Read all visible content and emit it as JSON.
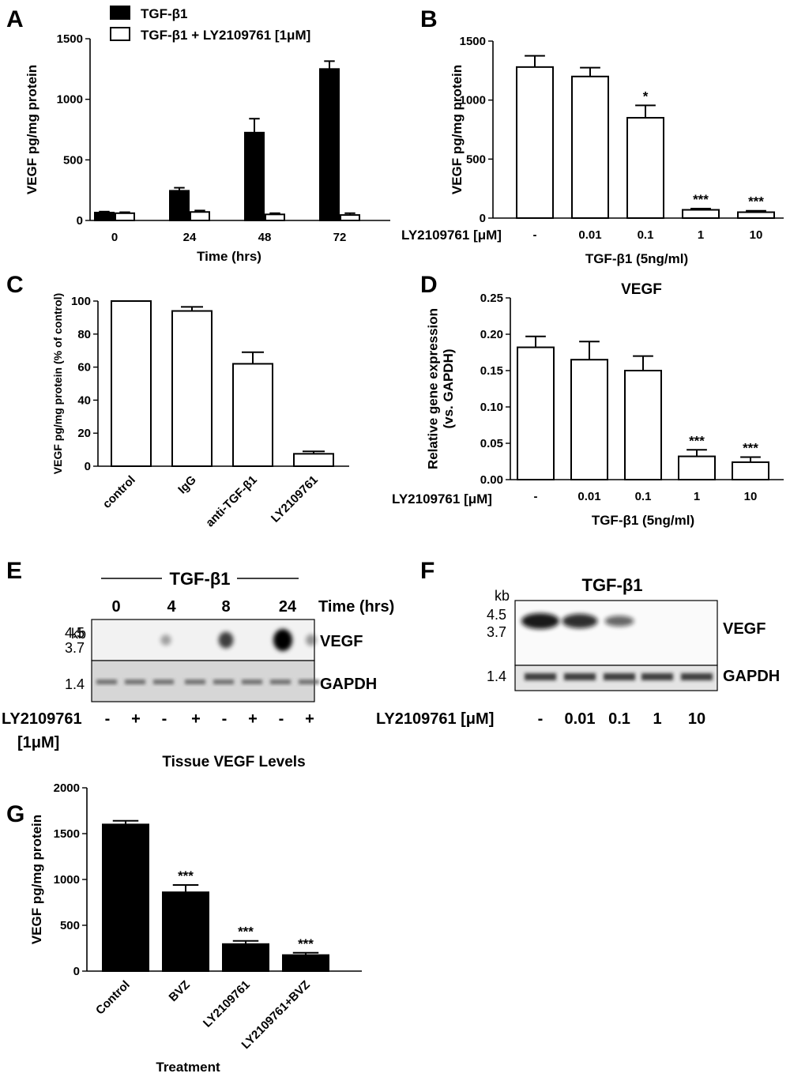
{
  "panels": {
    "A": {
      "letter": "A"
    },
    "B": {
      "letter": "B"
    },
    "C": {
      "letter": "C"
    },
    "D": {
      "letter": "D"
    },
    "E": {
      "letter": "E"
    },
    "F": {
      "letter": "F"
    },
    "G": {
      "letter": "G"
    }
  },
  "chart_data": [
    {
      "id": "A",
      "type": "bar",
      "title": "",
      "xlabel": "Time (hrs)",
      "ylabel": "VEGF pg/mg protein",
      "categories": [
        "0",
        "24",
        "48",
        "72"
      ],
      "ylim": [
        0,
        1500
      ],
      "yticks": [
        "0",
        "500",
        "1000",
        "1500"
      ],
      "legend": [
        "TGF-β1",
        "TGF-β1 + LY2109761 [1μM]"
      ],
      "legend_position": "top-left",
      "series": [
        {
          "name": "TGF-β1",
          "fill": "#000000",
          "values": [
            65,
            245,
            725,
            1250
          ],
          "errors": [
            8,
            25,
            115,
            65
          ]
        },
        {
          "name": "TGF-β1 + LY2109761 [1μM]",
          "fill": "#ffffff",
          "values": [
            60,
            70,
            50,
            45
          ],
          "errors": [
            8,
            12,
            10,
            15
          ]
        }
      ]
    },
    {
      "id": "B",
      "type": "bar",
      "title": "",
      "xlabel": "TGF-β1 (5ng/ml)",
      "row_label": "LY2109761 [μM]",
      "ylabel": "VEGF pg/mg protein",
      "categories": [
        "-",
        "0.01",
        "0.1",
        "1",
        "10"
      ],
      "ylim": [
        0,
        1500
      ],
      "yticks": [
        "0",
        "500",
        "1000",
        "1500"
      ],
      "series": [
        {
          "fill": "#ffffff",
          "values": [
            1280,
            1200,
            850,
            70,
            50
          ],
          "errors": [
            95,
            75,
            105,
            10,
            12
          ]
        }
      ],
      "annotations": [
        "",
        "",
        "*",
        "***",
        "***"
      ]
    },
    {
      "id": "C",
      "type": "bar",
      "title": "",
      "xlabel": "",
      "ylabel": "VEGF pg/mg protein (% of control)",
      "categories": [
        "control",
        "IgG",
        "anti-TGF-β1",
        "LY2109761"
      ],
      "ylim": [
        0,
        100
      ],
      "yticks": [
        "0",
        "20",
        "40",
        "60",
        "80",
        "100"
      ],
      "series": [
        {
          "fill": "#ffffff",
          "values": [
            100,
            94,
            62,
            7.5
          ],
          "errors": [
            0,
            2.5,
            7,
            1.5
          ]
        }
      ]
    },
    {
      "id": "D",
      "type": "bar",
      "title": "VEGF",
      "xlabel": "TGF-β1 (5ng/ml)",
      "row_label": "LY2109761 [μM]",
      "ylabel": "Relative gene expression (vs. GAPDH)",
      "categories": [
        "-",
        "0.01",
        "0.1",
        "1",
        "10"
      ],
      "ylim": [
        0,
        0.25
      ],
      "yticks": [
        "0.00",
        "0.05",
        "0.10",
        "0.15",
        "0.20",
        "0.25"
      ],
      "series": [
        {
          "fill": "#ffffff",
          "values": [
            0.182,
            0.165,
            0.15,
            0.032,
            0.024
          ],
          "errors": [
            0.015,
            0.025,
            0.02,
            0.009,
            0.007
          ]
        }
      ],
      "annotations": [
        "",
        "",
        "",
        "***",
        "***"
      ]
    },
    {
      "id": "G",
      "type": "bar",
      "title": "Tissue VEGF Levels",
      "xlabel": "Treatment",
      "ylabel": "VEGF pg/mg protein",
      "categories": [
        "Control",
        "BVZ",
        "LY2109761",
        "LY2109761+BVZ"
      ],
      "ylim": [
        0,
        2000
      ],
      "yticks": [
        "0",
        "500",
        "1000",
        "1500",
        "2000"
      ],
      "series": [
        {
          "fill": "#000000",
          "values": [
            1600,
            860,
            295,
            175
          ],
          "errors": [
            40,
            80,
            35,
            25
          ]
        }
      ],
      "annotations": [
        "",
        "***",
        "***",
        "***"
      ]
    }
  ],
  "blots": {
    "E": {
      "treatment": "TGF-β1",
      "time_label": "Time (hrs)",
      "times": [
        "0",
        "4",
        "8",
        "24"
      ],
      "kb_label": "kb",
      "kb_markers": [
        "4.5",
        "3.7",
        "1.4"
      ],
      "gene": "VEGF",
      "loading": "GAPDH",
      "row_label": "LY2109761",
      "row_label_2": "[1μM]",
      "lanes": [
        "-",
        "+",
        "-",
        "+",
        "-",
        "+",
        "-",
        "+"
      ],
      "vegf_signal": [
        0,
        0,
        0.1,
        0,
        0.55,
        0,
        1.0,
        0.15
      ]
    },
    "F": {
      "treatment": "TGF-β1",
      "kb_label": "kb",
      "kb_markers": [
        "4.5",
        "3.7",
        "1.4"
      ],
      "gene": "VEGF",
      "loading": "GAPDH",
      "row_label": "LY2109761 [μM]",
      "lanes": [
        "-",
        "0.01",
        "0.1",
        "1",
        "10"
      ],
      "vegf_signal": [
        1.0,
        0.85,
        0.45,
        0,
        0
      ]
    }
  }
}
